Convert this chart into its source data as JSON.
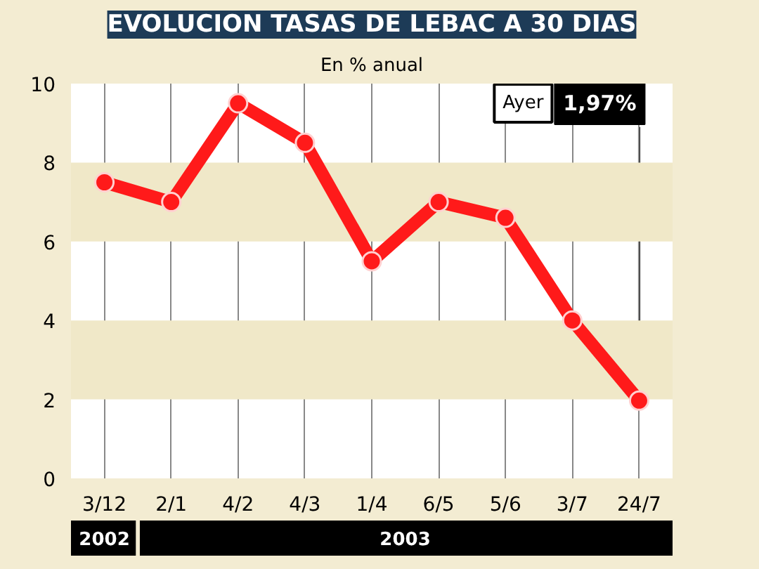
{
  "chart_data": {
    "type": "line",
    "title": "EVOLUCION TASAS DE LEBAC A 30 DIAS",
    "subtitle": "En % anual",
    "categories": [
      "3/12",
      "2/1",
      "4/2",
      "4/3",
      "1/4",
      "6/5",
      "5/6",
      "3/7",
      "24/7"
    ],
    "series": [
      {
        "color": "#ff1a1a",
        "values": [
          7.5,
          7.0,
          9.5,
          8.5,
          5.5,
          7.0,
          6.6,
          4.0,
          1.97
        ],
        "value_labels": [
          null,
          null,
          null,
          null,
          null,
          null,
          null,
          null,
          "1,97%"
        ]
      }
    ],
    "ylim": [
      0,
      10
    ],
    "yticks": [
      0,
      2,
      4,
      6,
      8,
      10
    ],
    "grid": "x",
    "marker": "circle",
    "line_style": "solid",
    "bands": [
      {
        "axis": "y",
        "from": 2,
        "to": 4,
        "color": "#f0e8c8"
      },
      {
        "axis": "y",
        "from": 6,
        "to": 8,
        "color": "#f0e8c8"
      }
    ],
    "annotations": [
      "Ayer",
      "2002",
      "2003"
    ]
  }
}
